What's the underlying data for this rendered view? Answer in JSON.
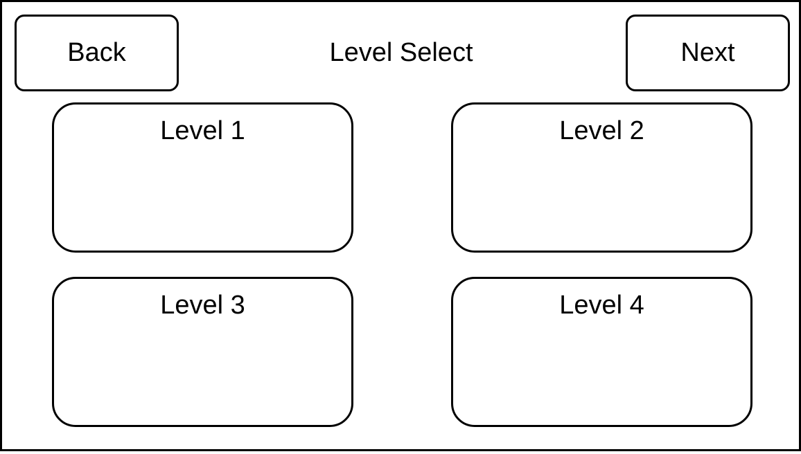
{
  "header": {
    "title": "Level Select",
    "back_label": "Back",
    "next_label": "Next"
  },
  "levels": [
    {
      "label": "Level 1"
    },
    {
      "label": "Level 2"
    },
    {
      "label": "Level 3"
    },
    {
      "label": "Level 4"
    }
  ],
  "colors": {
    "background": "#ffffff",
    "border": "#000000",
    "text": "#000000"
  }
}
